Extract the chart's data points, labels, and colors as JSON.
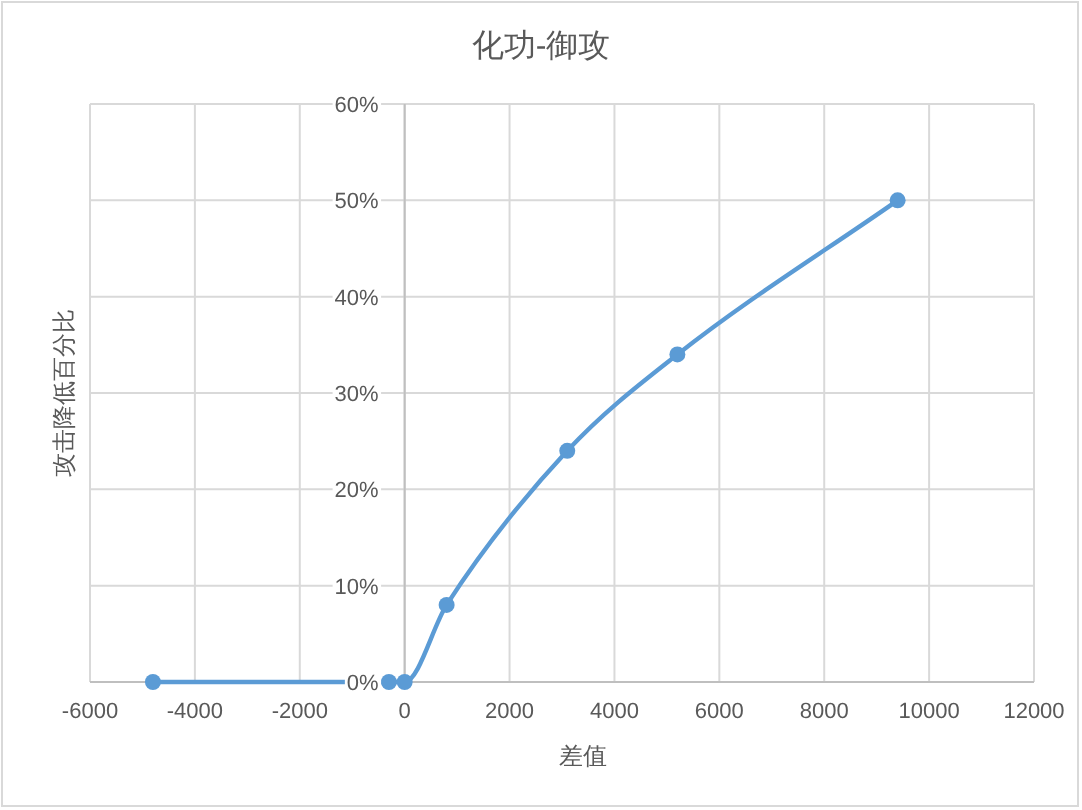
{
  "chart_data": {
    "type": "line",
    "title": "化功-御攻",
    "xlabel": "差值",
    "ylabel": "攻击降低百分比",
    "x": [
      -4800,
      -300,
      0,
      800,
      3100,
      5200,
      9400
    ],
    "series": [
      {
        "color": "#5b9bd5",
        "values": [
          0,
          0,
          0,
          8,
          24,
          34,
          50
        ]
      }
    ],
    "xlim": [
      -6000,
      12000
    ],
    "xticks": [
      -6000,
      -4000,
      -2000,
      0,
      2000,
      4000,
      6000,
      8000,
      10000,
      12000
    ],
    "ylim": [
      0,
      60
    ],
    "yticks": [
      {
        "value": 0,
        "label": "0%"
      },
      {
        "value": 10,
        "label": "10%"
      },
      {
        "value": 20,
        "label": "20%"
      },
      {
        "value": 30,
        "label": "30%"
      },
      {
        "value": 40,
        "label": "40%"
      },
      {
        "value": 50,
        "label": "50%"
      },
      {
        "value": 60,
        "label": "60%"
      }
    ],
    "grid": true,
    "marker": "circle",
    "line_style": "solid"
  }
}
